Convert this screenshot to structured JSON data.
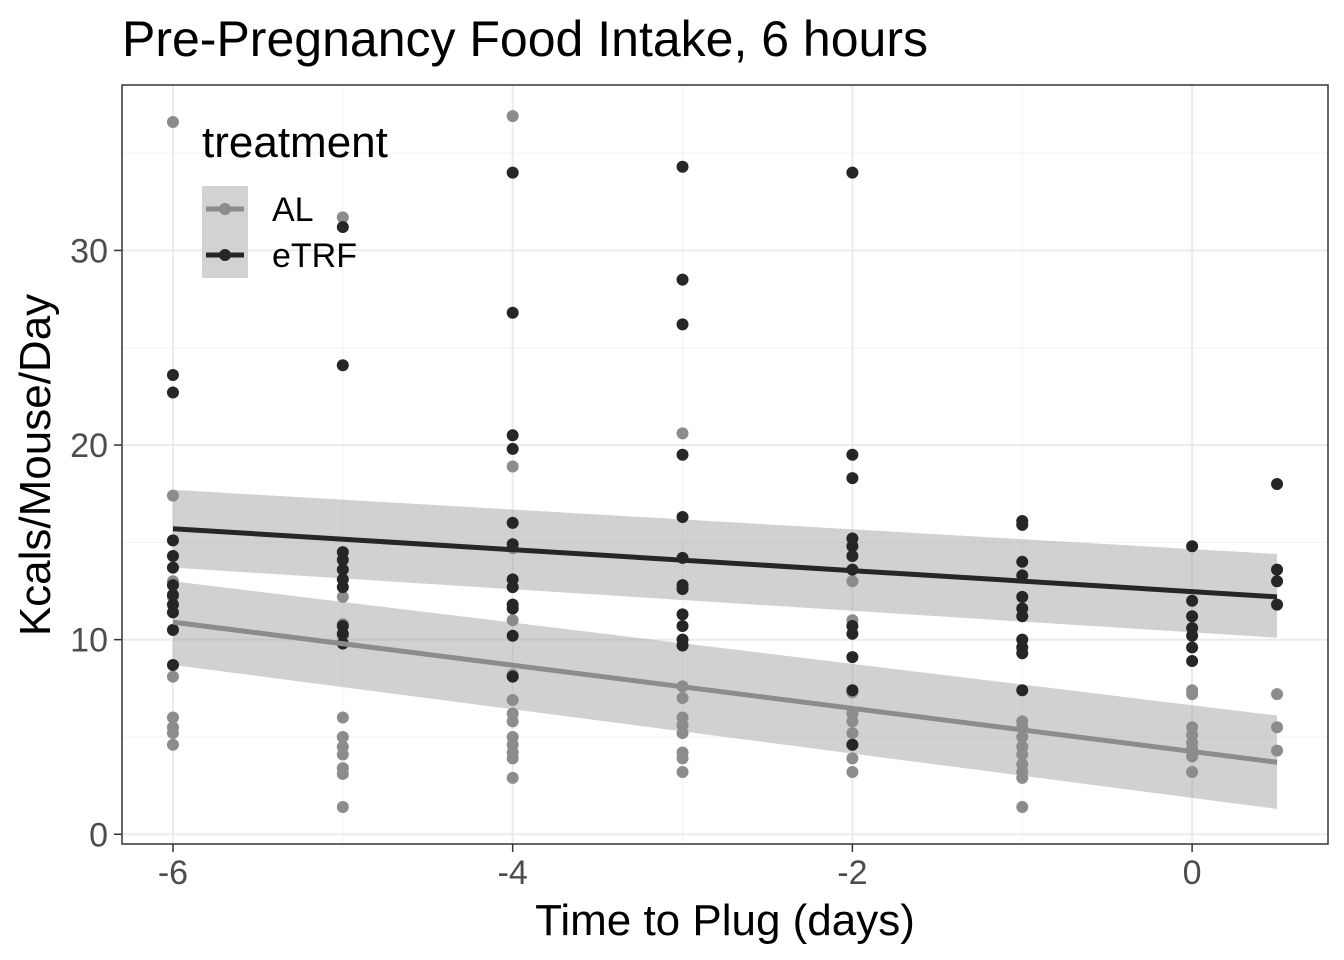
{
  "chart_data": {
    "type": "scatter",
    "title": "Pre-Pregnancy Food Intake, 6 hours",
    "xlabel": "Time to Plug (days)",
    "ylabel": "Kcals/Mouse/Day",
    "xlim": [
      -6.3,
      0.8
    ],
    "ylim": [
      -0.5,
      38.5
    ],
    "x_ticks": [
      -6,
      -4,
      -2,
      0
    ],
    "x_tick_labels": [
      "-6",
      "-4",
      "-2",
      "0"
    ],
    "y_ticks": [
      0,
      10,
      20,
      30
    ],
    "y_tick_labels": [
      "0",
      "10",
      "20",
      "30"
    ],
    "grid": true,
    "legend": {
      "title": "treatment",
      "position": "top-left-inside",
      "entries": [
        "AL",
        "eTRF"
      ]
    },
    "series": [
      {
        "name": "AL",
        "color": "#8c8c8c",
        "points": [
          [
            -6,
            36.6
          ],
          [
            -6,
            17.4
          ],
          [
            -6,
            13.0
          ],
          [
            -6,
            12.2
          ],
          [
            -6,
            8.1
          ],
          [
            -6,
            6.0
          ],
          [
            -6,
            5.5
          ],
          [
            -6,
            5.2
          ],
          [
            -6,
            4.6
          ],
          [
            -5,
            31.7
          ],
          [
            -5,
            12.2
          ],
          [
            -5,
            10.8
          ],
          [
            -5,
            10.2
          ],
          [
            -5,
            6.0
          ],
          [
            -5,
            5.0
          ],
          [
            -5,
            4.5
          ],
          [
            -5,
            4.1
          ],
          [
            -5,
            3.4
          ],
          [
            -5,
            3.1
          ],
          [
            -5,
            1.4
          ],
          [
            -4,
            36.9
          ],
          [
            -4,
            18.9
          ],
          [
            -4,
            14.7
          ],
          [
            -4,
            11.0
          ],
          [
            -4,
            8.2
          ],
          [
            -4,
            6.9
          ],
          [
            -4,
            6.2
          ],
          [
            -4,
            5.8
          ],
          [
            -4,
            5.0
          ],
          [
            -4,
            4.6
          ],
          [
            -4,
            4.2
          ],
          [
            -4,
            3.9
          ],
          [
            -4,
            2.9
          ],
          [
            -3,
            20.6
          ],
          [
            -3,
            7.6
          ],
          [
            -3,
            7.0
          ],
          [
            -3,
            6.0
          ],
          [
            -3,
            5.6
          ],
          [
            -3,
            5.2
          ],
          [
            -3,
            4.2
          ],
          [
            -3,
            3.9
          ],
          [
            -3,
            3.2
          ],
          [
            -2,
            13.0
          ],
          [
            -2,
            11.0
          ],
          [
            -2,
            7.3
          ],
          [
            -2,
            6.2
          ],
          [
            -2,
            5.8
          ],
          [
            -2,
            5.2
          ],
          [
            -2,
            4.6
          ],
          [
            -2,
            3.9
          ],
          [
            -2,
            3.2
          ],
          [
            -1,
            5.8
          ],
          [
            -1,
            5.5
          ],
          [
            -1,
            5.0
          ],
          [
            -1,
            4.5
          ],
          [
            -1,
            4.1
          ],
          [
            -1,
            3.6
          ],
          [
            -1,
            3.2
          ],
          [
            -1,
            2.9
          ],
          [
            -1,
            1.4
          ],
          [
            0,
            7.4
          ],
          [
            0,
            7.2
          ],
          [
            0,
            5.5
          ],
          [
            0,
            5.1
          ],
          [
            0,
            4.7
          ],
          [
            0,
            4.4
          ],
          [
            0,
            4.0
          ],
          [
            0,
            3.2
          ],
          [
            0.5,
            7.2
          ],
          [
            0.5,
            5.5
          ],
          [
            0.5,
            4.3
          ]
        ],
        "fit": {
          "x": [
            -6,
            0.5
          ],
          "y": [
            10.9,
            3.7
          ]
        },
        "ci_band": {
          "x": [
            -6,
            0.5
          ],
          "lower": [
            8.7,
            1.3
          ],
          "upper": [
            13.0,
            6.1
          ]
        }
      },
      {
        "name": "eTRF",
        "color": "#262626",
        "points": [
          [
            -6,
            23.6
          ],
          [
            -6,
            22.7
          ],
          [
            -6,
            15.1
          ],
          [
            -6,
            14.3
          ],
          [
            -6,
            13.7
          ],
          [
            -6,
            12.8
          ],
          [
            -6,
            12.3
          ],
          [
            -6,
            11.8
          ],
          [
            -6,
            11.4
          ],
          [
            -6,
            10.5
          ],
          [
            -6,
            8.7
          ],
          [
            -5,
            31.2
          ],
          [
            -5,
            24.1
          ],
          [
            -5,
            14.5
          ],
          [
            -5,
            14.1
          ],
          [
            -5,
            13.6
          ],
          [
            -5,
            13.1
          ],
          [
            -5,
            12.7
          ],
          [
            -5,
            10.7
          ],
          [
            -5,
            10.3
          ],
          [
            -5,
            9.8
          ],
          [
            -4,
            34.0
          ],
          [
            -4,
            26.8
          ],
          [
            -4,
            20.5
          ],
          [
            -4,
            19.8
          ],
          [
            -4,
            16.0
          ],
          [
            -4,
            14.9
          ],
          [
            -4,
            13.1
          ],
          [
            -4,
            12.7
          ],
          [
            -4,
            11.8
          ],
          [
            -4,
            11.6
          ],
          [
            -4,
            10.2
          ],
          [
            -4,
            8.1
          ],
          [
            -3,
            34.3
          ],
          [
            -3,
            28.5
          ],
          [
            -3,
            26.2
          ],
          [
            -3,
            19.5
          ],
          [
            -3,
            16.3
          ],
          [
            -3,
            14.2
          ],
          [
            -3,
            12.8
          ],
          [
            -3,
            12.6
          ],
          [
            -3,
            11.3
          ],
          [
            -3,
            10.7
          ],
          [
            -3,
            10.0
          ],
          [
            -3,
            9.7
          ],
          [
            -2,
            34.0
          ],
          [
            -2,
            19.5
          ],
          [
            -2,
            18.3
          ],
          [
            -2,
            15.2
          ],
          [
            -2,
            14.8
          ],
          [
            -2,
            14.3
          ],
          [
            -2,
            13.6
          ],
          [
            -2,
            10.7
          ],
          [
            -2,
            10.3
          ],
          [
            -2,
            9.1
          ],
          [
            -2,
            7.4
          ],
          [
            -2,
            4.6
          ],
          [
            -1,
            16.1
          ],
          [
            -1,
            15.9
          ],
          [
            -1,
            14.0
          ],
          [
            -1,
            13.3
          ],
          [
            -1,
            12.2
          ],
          [
            -1,
            11.6
          ],
          [
            -1,
            11.2
          ],
          [
            -1,
            10.0
          ],
          [
            -1,
            9.6
          ],
          [
            -1,
            9.3
          ],
          [
            -1,
            7.4
          ],
          [
            0,
            14.8
          ],
          [
            0,
            12.0
          ],
          [
            0,
            11.2
          ],
          [
            0,
            10.6
          ],
          [
            0,
            10.2
          ],
          [
            0,
            9.6
          ],
          [
            0,
            8.9
          ],
          [
            0.5,
            18.0
          ],
          [
            0.5,
            13.6
          ],
          [
            0.5,
            13.0
          ],
          [
            0.5,
            11.8
          ]
        ],
        "fit": {
          "x": [
            -6,
            0.5
          ],
          "y": [
            15.7,
            12.2
          ]
        },
        "ci_band": {
          "x": [
            -6,
            0.5
          ],
          "lower": [
            13.7,
            10.1
          ],
          "upper": [
            17.7,
            14.4
          ]
        }
      }
    ]
  }
}
